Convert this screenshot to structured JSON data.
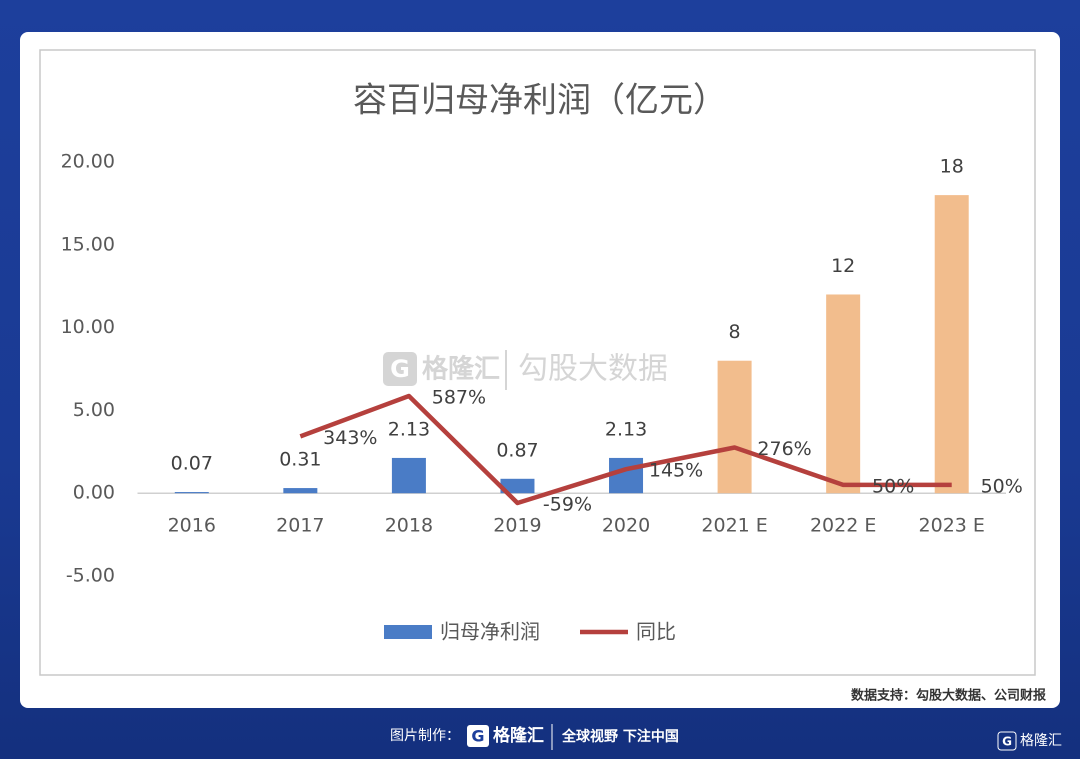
{
  "chart_data": {
    "type": "bar_line",
    "title": "容百归母净利润（亿元）",
    "categories": [
      "2016",
      "2017",
      "2018",
      "2019",
      "2020",
      "2021 E",
      "2022 E",
      "2023 E"
    ],
    "series": [
      {
        "name": "归母净利润",
        "type": "bar",
        "color": "#4a7cc6",
        "colors": [
          "#4a7cc6",
          "#4a7cc6",
          "#4a7cc6",
          "#4a7cc6",
          "#4a7cc6",
          "#f2bd8d",
          "#f2bd8d",
          "#f2bd8d"
        ],
        "values": [
          0.07,
          0.31,
          2.13,
          0.87,
          2.13,
          8,
          12,
          18
        ]
      },
      {
        "name": "同比",
        "type": "line",
        "color": "#b5403d",
        "axis": "y2",
        "values": [
          null,
          343,
          587,
          -59,
          145,
          276,
          50,
          50
        ],
        "value_labels": [
          null,
          "343%",
          "587%",
          "-59%",
          "145%",
          "276%",
          "50%",
          "50%"
        ]
      }
    ],
    "ylim": [
      -5,
      20
    ],
    "yticks": [
      {
        "value": -5,
        "label": "-5.00"
      },
      {
        "value": 0,
        "label": "0.00"
      },
      {
        "value": 5,
        "label": "5.00"
      },
      {
        "value": 10,
        "label": "10.00"
      },
      {
        "value": 15,
        "label": "15.00"
      },
      {
        "value": 20,
        "label": "20.00"
      }
    ],
    "y2lim": [
      -500,
      2000
    ],
    "legend": "bottom"
  },
  "page": {
    "source": "数据支持：勾股大数据、公司财报",
    "watermark_brand": "格隆汇",
    "watermark_text": "勾股大数据",
    "footer_label": "图片制作：",
    "footer_brand": "格隆汇",
    "footer_slogan": "全球视野 下注中国",
    "corner_brand": "格隆汇"
  }
}
